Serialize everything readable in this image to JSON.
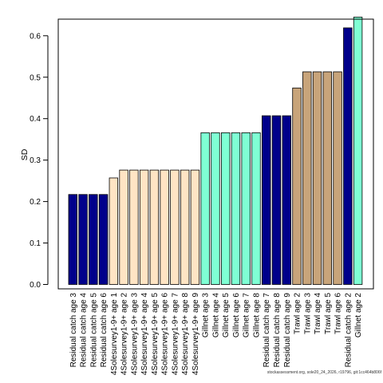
{
  "chart_data": {
    "type": "bar",
    "ylabel": "SD",
    "xlabel": "",
    "ylim": [
      0,
      0.645
    ],
    "yticks": [
      0.0,
      0.1,
      0.2,
      0.3,
      0.4,
      0.5,
      0.6
    ],
    "ytick_labels": [
      "0.0",
      "0.1",
      "0.2",
      "0.3",
      "0.4",
      "0.5",
      "0.6"
    ],
    "grid": false,
    "categories": [
      "Residual catch age 3",
      "Residual catch age 4",
      "Residual catch age 5",
      "Residual catch age 6",
      "4Solesurvey1-9+ age 1",
      "4Solesurvey1-9+ age 2",
      "4Solesurvey1-9+ age 3",
      "4Solesurvey1-9+ age 4",
      "4Solesurvey1-9+ age 5",
      "4Solesurvey1-9+ age 6",
      "4Solesurvey1-9+ age 7",
      "4Solesurvey1-9+ age 8",
      "4Solesurvey1-9+ age 9",
      "Gillnet age 3",
      "Gillnet age 4",
      "Gillnet age 5",
      "Gillnet age 6",
      "Gillnet age 7",
      "Gillnet age 8",
      "Residual catch age 7",
      "Residual catch age 8",
      "Residual catch age 9",
      "Trawl age 2",
      "Trawl age 3",
      "Trawl age 4",
      "Trawl age 5",
      "Trawl age 6",
      "Residual catch age 2",
      "Gillnet age 2"
    ],
    "values": [
      0.217,
      0.217,
      0.217,
      0.217,
      0.257,
      0.276,
      0.276,
      0.276,
      0.276,
      0.276,
      0.276,
      0.276,
      0.276,
      0.366,
      0.366,
      0.366,
      0.366,
      0.366,
      0.366,
      0.407,
      0.407,
      0.407,
      0.474,
      0.513,
      0.513,
      0.513,
      0.513,
      0.619,
      0.645
    ],
    "colors": [
      "#00008B",
      "#00008B",
      "#00008B",
      "#00008B",
      "#FFE4C4",
      "#FFE4C4",
      "#FFE4C4",
      "#FFE4C4",
      "#FFE4C4",
      "#FFE4C4",
      "#FFE4C4",
      "#FFE4C4",
      "#FFE4C4",
      "#7FFFD4",
      "#7FFFD4",
      "#7FFFD4",
      "#7FFFD4",
      "#7FFFD4",
      "#7FFFD4",
      "#00008B",
      "#00008B",
      "#00008B",
      "#C8A47A",
      "#C8A47A",
      "#C8A47A",
      "#C8A47A",
      "#C8A47A",
      "#00008B",
      "#7FFFD4"
    ]
  },
  "footer": {
    "text": "stockassessment.org, sole20_24_2026, r19796, git:1cc464b806f"
  }
}
